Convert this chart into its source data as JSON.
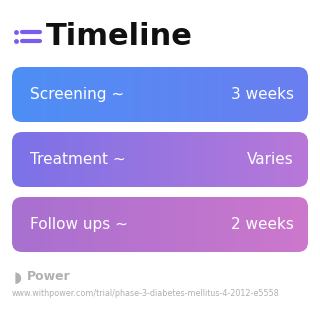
{
  "title": "Timeline",
  "background_color": "#ffffff",
  "bars": [
    {
      "label_left": "Screening ~",
      "label_right": "3 weeks",
      "color_left": "#4d8ff5",
      "color_right": "#6b7ef0"
    },
    {
      "label_left": "Treatment ~",
      "label_right": "Varies",
      "color_left": "#7b72e8",
      "color_right": "#b878d8"
    },
    {
      "label_left": "Follow ups ~",
      "label_right": "2 weeks",
      "color_left": "#a870d0",
      "color_right": "#cc78cc"
    }
  ],
  "footer_logo_text": "Power",
  "footer_url": "www.withpower.com/trial/phase-3-diabetes-mellitus-4-2012-e5558",
  "icon_color": "#7b5cf0",
  "footer_color": "#b0b0b0",
  "title_fontsize": 22,
  "bar_label_fontsize": 11,
  "footer_fontsize": 9,
  "url_fontsize": 5.8
}
